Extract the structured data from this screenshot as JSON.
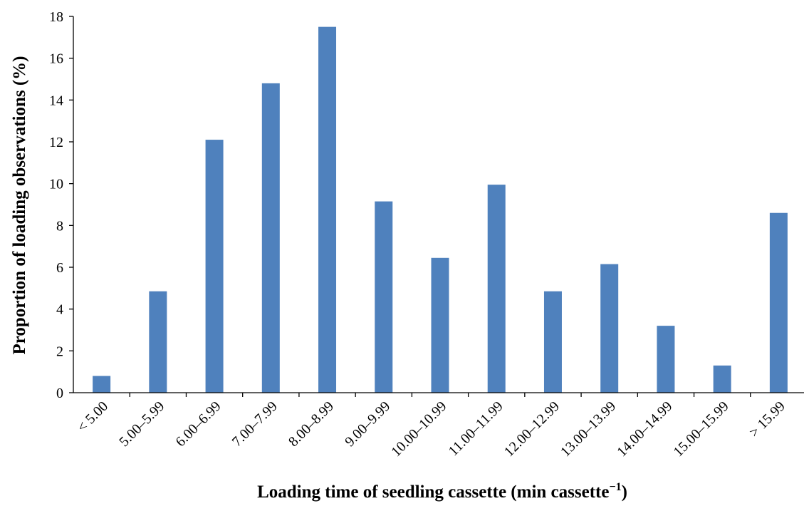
{
  "chart_data": {
    "type": "bar",
    "title": "",
    "xlabel": "Loading time of seedling cassette (min cassette",
    "xlabel_sup": "−1",
    "xlabel_end": ")",
    "ylabel": "Proportion of loading observations (%)",
    "ylim": [
      0,
      18
    ],
    "yticks": [
      "0",
      "2",
      "4",
      "6",
      "8",
      "10",
      "12",
      "14",
      "16",
      "18"
    ],
    "grid": false,
    "legend": "none",
    "bar_color": "#4f81bd",
    "categories": [
      "< 5.00",
      "5.00–5.99",
      "6.00–6.99",
      "7.00–7.99",
      "8.00–8.99",
      "9.00–9.99",
      "10.00–10.99",
      "11.00–11.99",
      "12.00–12.99",
      "13.00–13.99",
      "14.00–14.99",
      "15.00–15.99",
      "> 15.99"
    ],
    "series": [
      {
        "values": [
          0.8,
          4.85,
          12.1,
          14.8,
          17.5,
          9.15,
          6.45,
          9.95,
          4.85,
          6.15,
          3.2,
          1.3,
          8.6
        ]
      }
    ]
  }
}
